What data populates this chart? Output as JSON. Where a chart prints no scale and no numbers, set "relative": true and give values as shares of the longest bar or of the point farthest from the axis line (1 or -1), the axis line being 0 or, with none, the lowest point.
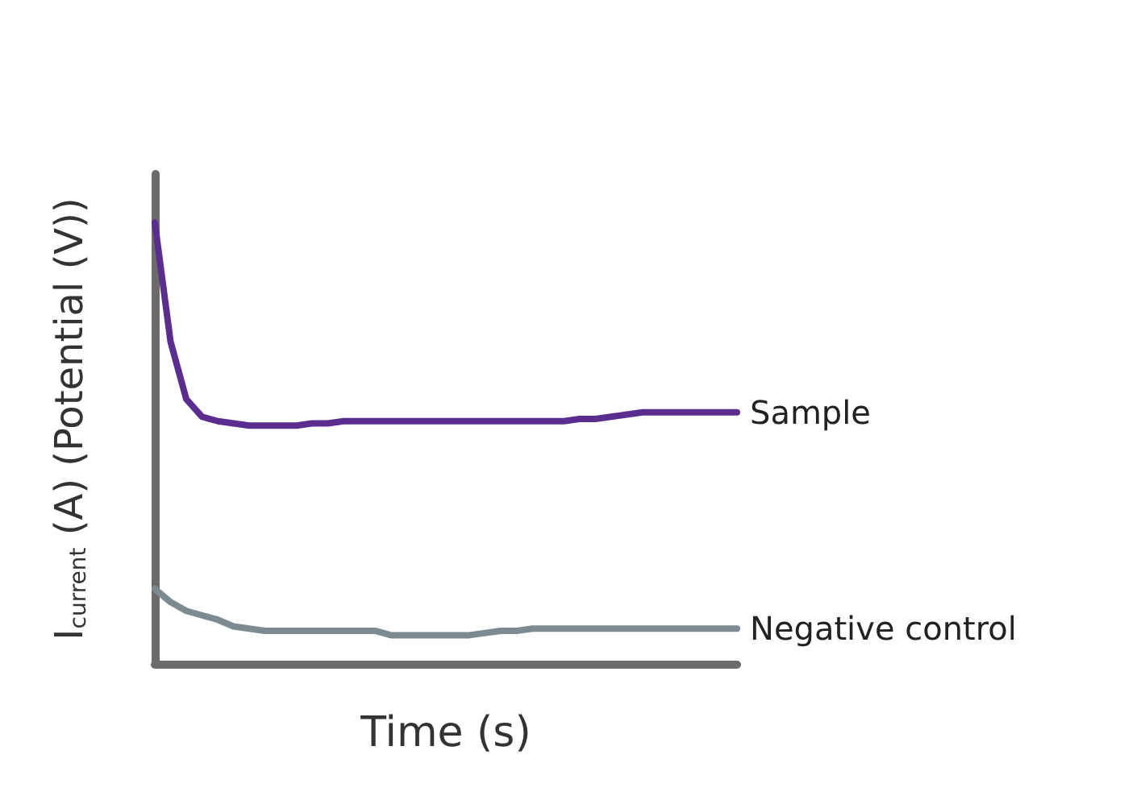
{
  "chart_data": {
    "type": "line",
    "relative": true,
    "xlabel": "Time (s)",
    "ylabel": "I$_{current}$ (A) (Potential (V))",
    "grid": false,
    "legend": false,
    "marker": "none",
    "line_style": "solid",
    "categories": [
      null,
      null,
      null,
      null,
      null,
      null,
      null,
      null,
      null,
      null,
      null,
      null,
      null,
      null,
      null,
      null,
      null,
      null,
      null,
      null,
      null,
      null,
      null,
      null,
      null,
      null,
      null,
      null,
      null,
      null,
      null,
      null,
      null,
      null,
      null,
      null,
      null,
      null
    ],
    "series": [
      {
        "name": "Sample",
        "color": "#5b2d8e",
        "values": [
          1.0,
          0.73,
          0.6,
          0.56,
          0.55,
          0.545,
          0.54,
          0.54,
          0.54,
          0.54,
          0.545,
          0.545,
          0.55,
          0.55,
          0.55,
          0.55,
          0.55,
          0.55,
          0.55,
          0.55,
          0.55,
          0.55,
          0.55,
          0.55,
          0.55,
          0.55,
          0.55,
          0.555,
          0.555,
          0.56,
          0.565,
          0.57,
          0.57,
          0.57,
          0.57,
          0.57,
          0.57,
          0.57
        ]
      },
      {
        "name": "Negative control",
        "color": "#7b8b91",
        "values": [
          0.17,
          0.14,
          0.12,
          0.11,
          0.1,
          0.085,
          0.08,
          0.075,
          0.075,
          0.075,
          0.075,
          0.075,
          0.075,
          0.075,
          0.075,
          0.065,
          0.065,
          0.065,
          0.065,
          0.065,
          0.065,
          0.07,
          0.075,
          0.075,
          0.08,
          0.08,
          0.08,
          0.08,
          0.08,
          0.08,
          0.08,
          0.08,
          0.08,
          0.08,
          0.08,
          0.08,
          0.08,
          0.08
        ]
      }
    ]
  }
}
